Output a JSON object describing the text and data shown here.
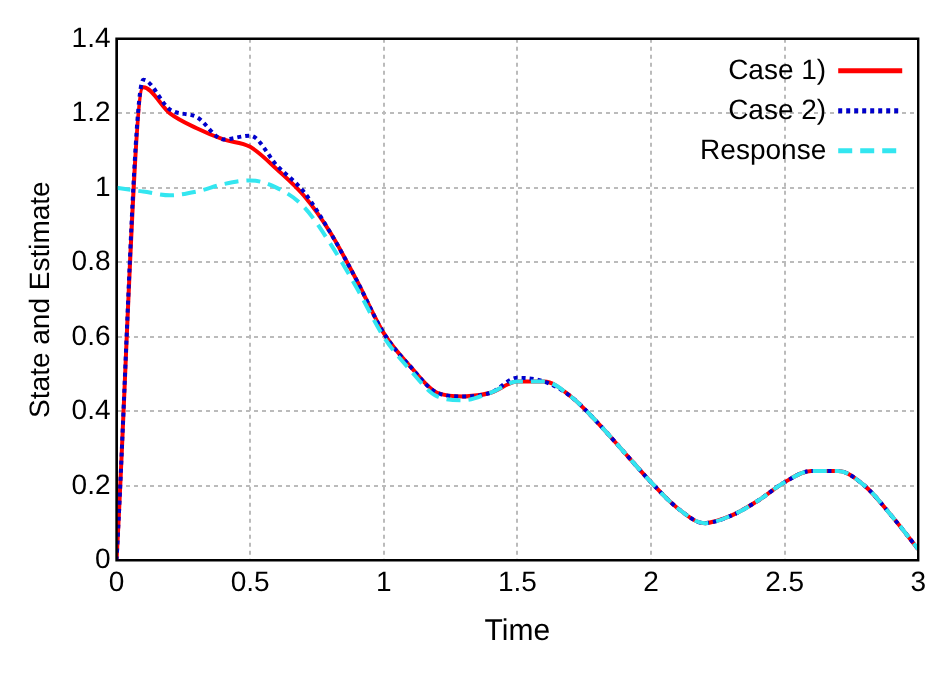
{
  "chart_data": {
    "type": "line",
    "xlabel": "Time",
    "ylabel": "State and Estimate",
    "xlim": [
      0,
      3
    ],
    "ylim": [
      0,
      1.4
    ],
    "xticks": [
      0,
      0.5,
      1,
      1.5,
      2,
      2.5,
      3
    ],
    "yticks": [
      0,
      0.2,
      0.4,
      0.6,
      0.8,
      1,
      1.2,
      1.4
    ],
    "grid": true,
    "legend": "top right",
    "marker": "none",
    "x": [
      0,
      0.1,
      0.2,
      0.3,
      0.4,
      0.5,
      0.6,
      0.7,
      0.8,
      0.9,
      1.0,
      1.1,
      1.2,
      1.3,
      1.4,
      1.5,
      1.6,
      1.7,
      1.8,
      1.9,
      2.0,
      2.1,
      2.2,
      2.3,
      2.4,
      2.5,
      2.6,
      2.7,
      2.8,
      2.9,
      3.0
    ],
    "series": [
      {
        "name": "Case 1)",
        "color": "#ff0000",
        "line_style": "solid",
        "values": [
          0,
          1.27,
          1.2,
          1.16,
          1.13,
          1.11,
          1.05,
          0.98,
          0.88,
          0.75,
          0.61,
          0.52,
          0.45,
          0.44,
          0.45,
          0.48,
          0.48,
          0.44,
          0.37,
          0.29,
          0.21,
          0.14,
          0.1,
          0.12,
          0.16,
          0.21,
          0.24,
          0.24,
          0.2,
          0.12,
          0.03
        ]
      },
      {
        "name": "Case 2)",
        "color": "#0000cc",
        "line_style": "dotted",
        "values": [
          0,
          1.29,
          1.21,
          1.19,
          1.13,
          1.14,
          1.06,
          0.99,
          0.88,
          0.75,
          0.61,
          0.52,
          0.45,
          0.44,
          0.45,
          0.49,
          0.48,
          0.44,
          0.37,
          0.29,
          0.21,
          0.14,
          0.1,
          0.12,
          0.16,
          0.21,
          0.24,
          0.24,
          0.2,
          0.12,
          0.03
        ]
      },
      {
        "name": "Response",
        "color": "#33e6f0",
        "line_style": "dashed",
        "values": [
          1.0,
          0.99,
          0.98,
          0.99,
          1.01,
          1.02,
          1.0,
          0.95,
          0.85,
          0.73,
          0.6,
          0.51,
          0.44,
          0.43,
          0.45,
          0.48,
          0.48,
          0.44,
          0.37,
          0.29,
          0.21,
          0.14,
          0.1,
          0.12,
          0.16,
          0.21,
          0.24,
          0.24,
          0.2,
          0.12,
          0.03
        ]
      }
    ]
  }
}
